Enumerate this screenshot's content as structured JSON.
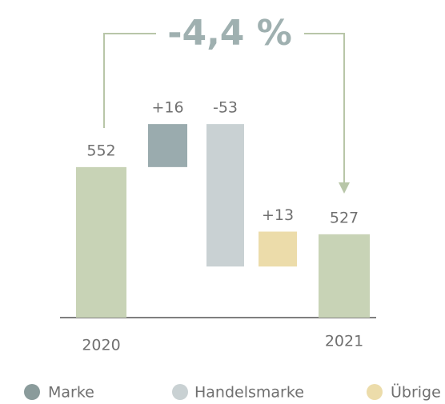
{
  "chart_data": {
    "type": "waterfall",
    "annotation": "-4,4 %",
    "categories": [
      "2020",
      null,
      null,
      null,
      "2021"
    ],
    "values": [
      552,
      16,
      -53,
      13,
      527
    ],
    "value_labels": [
      "552",
      "+16",
      "-53",
      "+13",
      "527"
    ],
    "measure": [
      "absolute",
      "relative",
      "relative",
      "relative",
      "absolute"
    ],
    "colors": [
      "#c8d3b6",
      "#9aabae",
      "#c9d1d3",
      "#ecdcaa",
      "#c8d3b6"
    ],
    "ylim": [
      496,
      600
    ],
    "legend": [
      {
        "name": "Marke",
        "color": "#8a9b9b"
      },
      {
        "name": "Handelsmarke",
        "color": "#c9d1d3"
      },
      {
        "name": "Übrige",
        "color": "#ecdcaa"
      }
    ]
  }
}
